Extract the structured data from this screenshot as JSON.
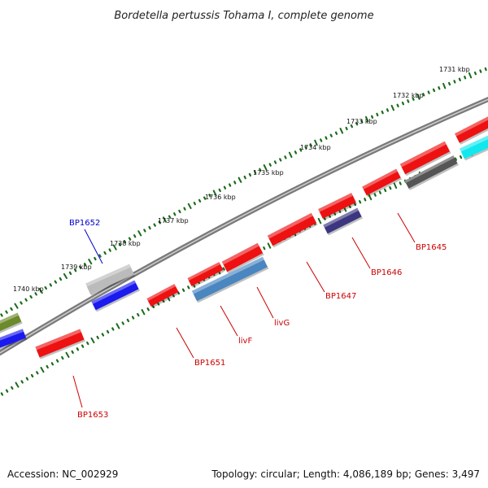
{
  "title": "Bordetella pertussis Tohama I, complete genome",
  "scale_labels": [
    "1731 kbp",
    "1732 kbp",
    "1733 kbp",
    "1734 kbp",
    "1735 kbp",
    "1736 kbp",
    "1737 kbp",
    "1738 kbp",
    "1739 kbp",
    "1740 kbp"
  ],
  "gene_labels": [
    {
      "text": "BP1652",
      "color": "#0000cc"
    },
    {
      "text": "BP1645",
      "color": "#cc0000"
    },
    {
      "text": "BP1646",
      "color": "#cc0000"
    },
    {
      "text": "BP1647",
      "color": "#cc0000"
    },
    {
      "text": "livG",
      "color": "#cc0000"
    },
    {
      "text": "livF",
      "color": "#cc0000"
    },
    {
      "text": "BP1651",
      "color": "#cc0000"
    },
    {
      "text": "BP1653",
      "color": "#cc0000"
    }
  ],
  "colors": {
    "backbone": "#7a7a7a",
    "tick": "#1a6b1a",
    "red": "#ee1111",
    "blue": "#1a1aee",
    "steelblue": "#4a86c0",
    "darkgray": "#555555",
    "lightgray": "#bbbbbb",
    "cyan": "#11e8ee",
    "navy": "#3c3680",
    "olive": "#6b8a2a"
  },
  "footer": {
    "accession": "Accession: NC_002929",
    "topology": "Topology: circular; Length: 4,086,189 bp; Genes: 3,497"
  }
}
